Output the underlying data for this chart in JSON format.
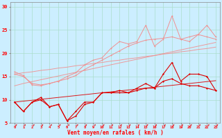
{
  "xlabel": "Vent moyen/en rafales ( km/h )",
  "bg_color": "#cceeff",
  "grid_color": "#aaddcc",
  "x": [
    0,
    1,
    2,
    3,
    4,
    5,
    6,
    7,
    8,
    9,
    10,
    11,
    12,
    13,
    14,
    15,
    16,
    17,
    18,
    19,
    20,
    21,
    22,
    23
  ],
  "line_light1": [
    16.0,
    15.2,
    13.2,
    13.0,
    13.5,
    14.0,
    14.5,
    15.2,
    16.5,
    17.5,
    18.5,
    19.5,
    20.5,
    21.5,
    22.2,
    22.8,
    23.0,
    23.2,
    23.5,
    23.0,
    23.5,
    24.0,
    23.5,
    23.0
  ],
  "line_light2": [
    15.5,
    15.0,
    13.5,
    13.2,
    13.5,
    14.0,
    15.0,
    15.8,
    17.5,
    18.5,
    19.0,
    21.0,
    22.5,
    22.0,
    22.5,
    26.0,
    21.5,
    23.0,
    28.0,
    23.0,
    22.5,
    24.0,
    26.0,
    23.5
  ],
  "line_dark1": [
    9.5,
    7.5,
    9.5,
    10.5,
    8.5,
    9.0,
    5.5,
    7.5,
    9.5,
    9.5,
    11.5,
    11.5,
    12.0,
    11.5,
    12.5,
    13.5,
    12.5,
    15.5,
    18.0,
    14.0,
    15.5,
    15.5,
    15.0,
    12.0
  ],
  "line_dark2": [
    9.5,
    7.5,
    9.5,
    10.0,
    8.5,
    9.0,
    5.5,
    6.5,
    9.0,
    9.5,
    11.5,
    11.5,
    11.5,
    11.5,
    12.0,
    12.5,
    12.5,
    14.0,
    14.5,
    13.5,
    13.0,
    13.0,
    12.5,
    12.0
  ],
  "trend_light1": [
    13.0,
    13.5,
    13.9,
    14.3,
    14.7,
    15.1,
    15.5,
    15.9,
    16.3,
    16.7,
    17.1,
    17.5,
    17.9,
    18.3,
    18.7,
    19.1,
    19.5,
    19.9,
    20.3,
    20.7,
    21.1,
    21.5,
    21.9,
    22.3
  ],
  "trend_light2": [
    15.5,
    15.8,
    16.0,
    16.3,
    16.5,
    16.8,
    17.0,
    17.3,
    17.5,
    17.8,
    18.0,
    18.3,
    18.5,
    18.8,
    19.0,
    19.3,
    19.5,
    19.8,
    20.0,
    20.3,
    20.5,
    20.8,
    21.0,
    21.3
  ],
  "trend_dark1": [
    9.5,
    9.7,
    9.9,
    10.1,
    10.3,
    10.5,
    10.7,
    10.9,
    11.1,
    11.3,
    11.5,
    11.7,
    11.9,
    12.1,
    12.3,
    12.5,
    12.7,
    12.9,
    13.1,
    13.3,
    13.5,
    13.7,
    13.9,
    14.1
  ],
  "color_light": "#f09090",
  "color_dark": "#dd0000",
  "arrow_color": "#dd2222"
}
